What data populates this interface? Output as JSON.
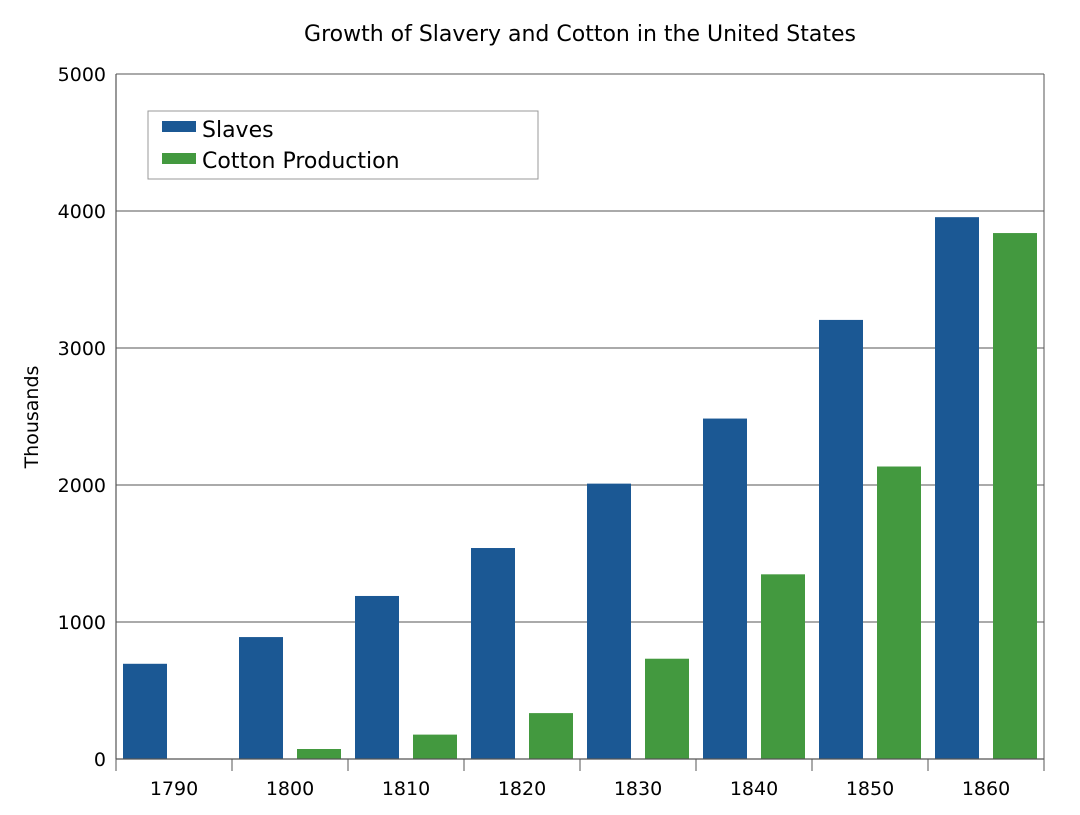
{
  "chart_data": {
    "type": "bar",
    "title": "Growth of Slavery and Cotton in the United States",
    "xlabel": "",
    "ylabel": "Thousands",
    "ylim": [
      0,
      5000
    ],
    "yticks": [
      0,
      1000,
      2000,
      3000,
      4000,
      5000
    ],
    "grid": true,
    "legend_position": "top-left",
    "categories": [
      "1790",
      "1800",
      "1810",
      "1820",
      "1830",
      "1840",
      "1850",
      "1860"
    ],
    "series": [
      {
        "name": "Slaves",
        "color": "#1b5894",
        "values": [
          695,
          890,
          1190,
          1540,
          2010,
          2485,
          3205,
          3955
        ]
      },
      {
        "name": "Cotton Production",
        "color": "#43993f",
        "values": [
          0,
          73,
          178,
          335,
          732,
          1348,
          2135,
          3839
        ]
      }
    ]
  }
}
